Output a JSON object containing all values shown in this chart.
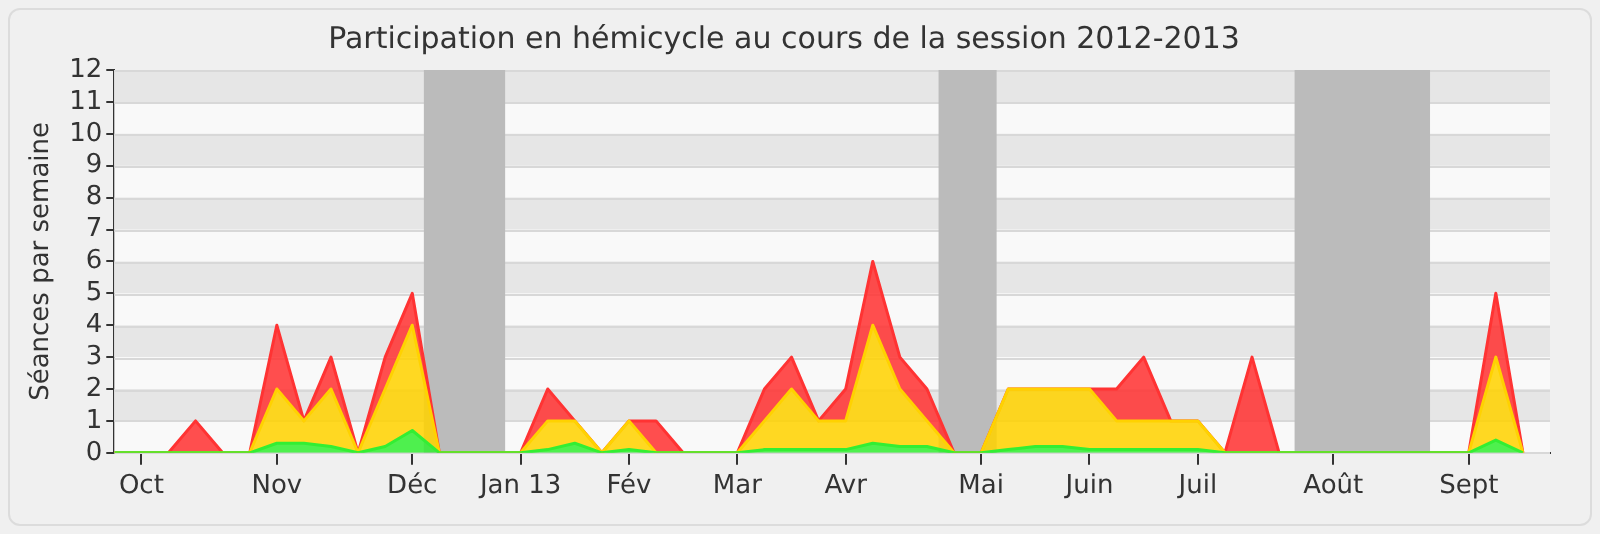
{
  "chart_data": {
    "type": "area",
    "title": "Participation en hémicycle au cours de la session 2012-2013",
    "ylabel": "Séances par semaine",
    "stacked": true,
    "grid": "y",
    "legend": false,
    "x": [
      "2012-09-24",
      "2012-10-01",
      "2012-10-08",
      "2012-10-15",
      "2012-10-22",
      "2012-10-29",
      "2012-11-05",
      "2012-11-12",
      "2012-11-19",
      "2012-11-26",
      "2012-12-03",
      "2012-12-10",
      "2012-12-17",
      "2012-12-24",
      "2012-12-31",
      "2013-01-07",
      "2013-01-14",
      "2013-01-21",
      "2013-01-28",
      "2013-02-04",
      "2013-02-11",
      "2013-02-18",
      "2013-02-25",
      "2013-03-04",
      "2013-03-11",
      "2013-03-18",
      "2013-03-25",
      "2013-04-01",
      "2013-04-08",
      "2013-04-15",
      "2013-04-22",
      "2013-04-29",
      "2013-05-06",
      "2013-05-13",
      "2013-05-20",
      "2013-05-27",
      "2013-06-03",
      "2013-06-10",
      "2013-06-17",
      "2013-06-24",
      "2013-07-01",
      "2013-07-08",
      "2013-07-15",
      "2013-07-22",
      "2013-07-29",
      "2013-08-05",
      "2013-08-12",
      "2013-08-19",
      "2013-08-26",
      "2013-09-02",
      "2013-09-09",
      "2013-09-16",
      "2013-09-23"
    ],
    "series": [
      {
        "color": "#33ee33",
        "values": [
          0,
          0,
          0,
          0,
          0,
          0,
          0.3,
          0.3,
          0.2,
          0,
          0.2,
          0.7,
          0,
          0,
          0,
          0,
          0.1,
          0.3,
          0,
          0.1,
          0,
          0,
          0,
          0,
          0.1,
          0.1,
          0.1,
          0.1,
          0.3,
          0.2,
          0.2,
          0,
          0,
          0.1,
          0.2,
          0.2,
          0.1,
          0.1,
          0.1,
          0.1,
          0.1,
          0,
          0,
          0,
          0,
          0,
          0,
          0,
          0,
          0,
          0,
          0.4,
          0
        ]
      },
      {
        "color": "#ffd200",
        "values": [
          0,
          0,
          0,
          0,
          0,
          0,
          1.7,
          0.7,
          1.8,
          0,
          1.8,
          3.3,
          0,
          0,
          0,
          0,
          0.9,
          0.7,
          0,
          0.9,
          0,
          0,
          0,
          0,
          0.9,
          1.9,
          0.9,
          0.9,
          3.7,
          1.8,
          0.8,
          0,
          0,
          1.9,
          1.8,
          1.8,
          1.9,
          0.9,
          0.9,
          0.9,
          0.9,
          0,
          0,
          0,
          0,
          0,
          0,
          0,
          0,
          0,
          0,
          2.6,
          0
        ]
      },
      {
        "color": "#ff3333",
        "values": [
          0,
          0,
          0,
          1,
          0,
          0,
          2,
          0,
          1,
          0,
          1,
          1,
          0,
          0,
          0,
          0,
          1,
          0,
          0,
          0,
          1,
          0,
          0,
          0,
          1,
          1,
          0,
          1,
          2,
          1,
          1,
          0,
          0,
          0,
          0,
          0,
          0,
          1,
          2,
          0,
          0,
          0,
          3,
          0,
          0,
          0,
          0,
          0,
          0,
          0,
          0,
          2,
          0
        ]
      }
    ],
    "xlim": [
      "2012-09-24",
      "2013-09-30"
    ],
    "xticks": [
      {
        "value": "2012-10-01",
        "label": "Oct"
      },
      {
        "value": "2012-11-05",
        "label": "Nov"
      },
      {
        "value": "2012-12-10",
        "label": "Déc"
      },
      {
        "value": "2013-01-07",
        "label": "Jan 13"
      },
      {
        "value": "2013-02-04",
        "label": "Fév"
      },
      {
        "value": "2013-03-04",
        "label": "Mar"
      },
      {
        "value": "2013-04-01",
        "label": "Avr"
      },
      {
        "value": "2013-05-06",
        "label": "Mai"
      },
      {
        "value": "2013-06-03",
        "label": "Juin"
      },
      {
        "value": "2013-07-01",
        "label": "Juil"
      },
      {
        "value": "2013-08-05",
        "label": "Août"
      },
      {
        "value": "2013-09-09",
        "label": "Sept"
      }
    ],
    "ylim": [
      0,
      12
    ],
    "yticks": [
      0,
      1,
      2,
      3,
      4,
      5,
      6,
      7,
      8,
      9,
      10,
      11,
      12
    ],
    "bands": [
      {
        "axis": "x",
        "from": "2012-12-13",
        "to": "2013-01-03",
        "color": "#bbbbbb"
      },
      {
        "axis": "x",
        "from": "2013-04-25",
        "to": "2013-05-10",
        "color": "#bbbbbb"
      },
      {
        "axis": "x",
        "from": "2013-07-26",
        "to": "2013-08-30",
        "color": "#bbbbbb"
      }
    ]
  }
}
